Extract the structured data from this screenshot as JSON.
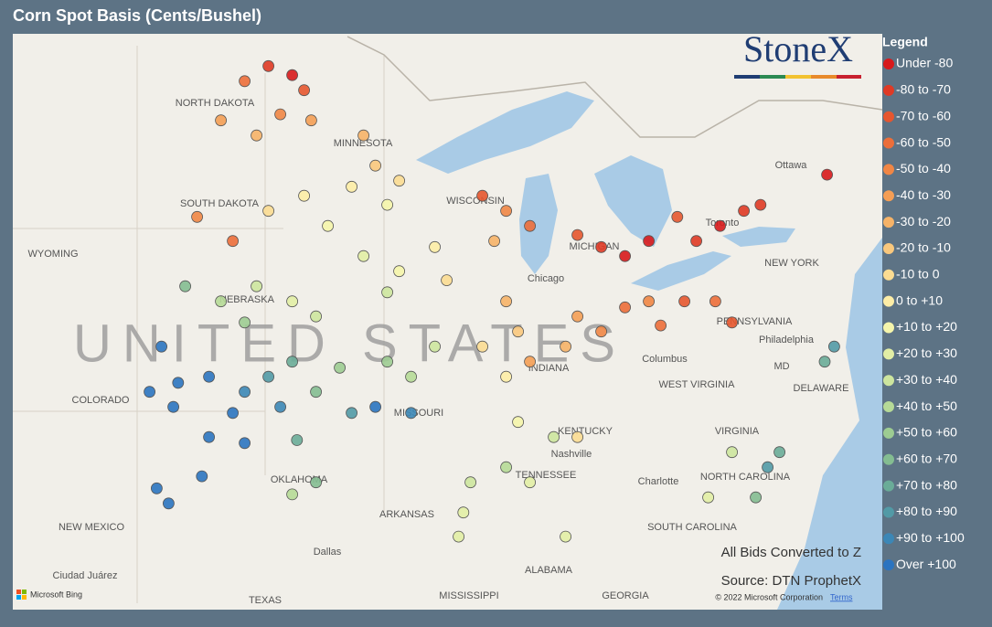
{
  "title": "Corn Spot Basis (Cents/Bushel)",
  "logo": "StoneX",
  "legend": {
    "title": "Legend",
    "items": [
      {
        "label": "Under -80",
        "color": "#d7191c"
      },
      {
        "label": "-80 to -70",
        "color": "#df3a25"
      },
      {
        "label": "-70 to -60",
        "color": "#e6562f"
      },
      {
        "label": "-60 to -50",
        "color": "#ec6e3a"
      },
      {
        "label": "-50 to -40",
        "color": "#f08645"
      },
      {
        "label": "-40 to -30",
        "color": "#f49e55"
      },
      {
        "label": "-30 to -20",
        "color": "#f6b368"
      },
      {
        "label": "-20 to -10",
        "color": "#f9c87d"
      },
      {
        "label": "-10 to 0",
        "color": "#fbdc92"
      },
      {
        "label": "0 to +10",
        "color": "#fdeda6"
      },
      {
        "label": "+10 to +20",
        "color": "#f5f5ab"
      },
      {
        "label": "+20 to +30",
        "color": "#e2eea5"
      },
      {
        "label": "+30 to +40",
        "color": "#cde59e"
      },
      {
        "label": "+40 to +50",
        "color": "#b6da97"
      },
      {
        "label": "+50 to +60",
        "color": "#9dcc92"
      },
      {
        "label": "+60 to +70",
        "color": "#84bd91"
      },
      {
        "label": "+70 to +80",
        "color": "#6aac98"
      },
      {
        "label": "+80 to +90",
        "color": "#529aa6"
      },
      {
        "label": "+90 to +100",
        "color": "#3c87b6"
      },
      {
        "label": "Over +100",
        "color": "#2b74c0"
      }
    ]
  },
  "points": {
    "lon": [
      -99,
      -98,
      -97.5,
      -100,
      -98.5,
      -97.2,
      -99.5,
      -101,
      -95,
      -94.5,
      -93.5,
      -95.5,
      -94,
      -99,
      -97.5,
      -96.5,
      -102,
      -100.5,
      -95,
      -93.5,
      -92,
      -91.5,
      -94,
      -90,
      -89,
      -88,
      -89.5,
      -89,
      -88.5,
      -90,
      -89,
      -88,
      -86,
      -85,
      -84,
      -83,
      -82.5,
      -81.5,
      -86.5,
      -85,
      -84,
      -83,
      -86,
      -81,
      -80,
      -79,
      -81.8,
      -78.3,
      -75.5,
      -79.5,
      -80.2,
      -101,
      -99.5,
      -98,
      -97,
      -100,
      -102.5,
      -101.5,
      -100,
      -99,
      -98,
      -97,
      -96,
      -100.5,
      -98.5,
      -95.5,
      -103.5,
      -102.8,
      -104,
      -103,
      -101.5,
      -100,
      -97.8,
      -97,
      -101.8,
      -98,
      -94,
      -93,
      -92,
      -94.5,
      -93,
      -88.5,
      -87,
      -86,
      -89,
      -88,
      -90.5,
      -90.8,
      -91,
      -78,
      -77.5,
      -78.5,
      -80.5,
      -79.5,
      -86.5,
      -75.6,
      -75.2,
      -103.7,
      -103.2
    ],
    "lat": [
      48.8,
      48.5,
      48,
      48.3,
      47.2,
      47,
      46.5,
      47,
      46.5,
      45.5,
      45,
      44.8,
      44.2,
      44,
      44.5,
      43.5,
      43.8,
      43,
      42.5,
      42,
      42.8,
      41.7,
      41.3,
      44.5,
      44,
      43.5,
      43,
      41,
      40,
      39.5,
      38.5,
      39,
      40.5,
      40,
      40.8,
      41,
      40.2,
      41,
      39.5,
      42.8,
      42.5,
      43,
      43.2,
      43,
      43.5,
      44,
      43.8,
      44.2,
      45.2,
      40.3,
      41,
      41,
      41.5,
      41,
      40.5,
      40.3,
      41.5,
      38.5,
      38,
      38.5,
      39,
      38,
      38.8,
      37.3,
      37.5,
      37.3,
      39.5,
      38.3,
      38,
      37.5,
      36.5,
      36.3,
      36.4,
      35,
      35.2,
      34.6,
      39,
      38.5,
      39.5,
      37.5,
      37.3,
      37,
      36.5,
      36.5,
      35.5,
      35,
      35,
      34,
      33.2,
      35.5,
      36,
      34.5,
      34.5,
      36,
      33.2,
      39,
      39.5,
      34.8,
      34.3
    ],
    "bin": [
      1,
      0,
      2,
      3,
      4,
      5,
      6,
      5,
      6,
      7,
      8,
      9,
      10,
      8,
      9,
      10,
      4,
      3,
      11,
      10,
      9,
      8,
      12,
      2,
      4,
      3,
      6,
      6,
      7,
      8,
      9,
      5,
      5,
      4,
      3,
      4,
      3,
      2,
      6,
      1,
      0,
      0,
      2,
      1,
      0,
      1,
      2,
      1,
      0,
      2,
      3,
      13,
      12,
      11,
      12,
      14,
      15,
      19,
      18,
      17,
      16,
      15,
      14,
      19,
      18,
      17,
      19,
      19,
      19,
      19,
      19,
      19,
      16,
      15,
      19,
      13,
      14,
      13,
      12,
      19,
      18,
      10,
      12,
      8,
      13,
      11,
      12,
      11,
      11,
      17,
      16,
      15,
      11,
      12,
      11,
      16,
      17,
      19,
      19
    ]
  },
  "map_labels": [
    "NORTH DAKOTA",
    "MINNESOTA",
    "SOUTH DAKOTA",
    "WISCONSIN",
    "WYOMING",
    "NEBRASKA",
    "Chicago",
    "MICHIGAN",
    "Toronto",
    "Ottawa",
    "NEW YORK",
    "PENNSYLVANIA",
    "Philadelphia",
    "Columbus",
    "INDIANA",
    "MD",
    "DELAWARE",
    "WEST VIRGINIA",
    "COLORADO",
    "MISSOURI",
    "KENTUCKY",
    "VIRGINIA",
    "Nashville",
    "TENNESSEE",
    "OKLAHOMA",
    "Charlotte",
    "NORTH CAROLINA",
    "ARKANSAS",
    "SOUTH CAROLINA",
    "NEW MEXICO",
    "Dallas",
    "Ciudad Juárez",
    "ALABAMA",
    "TEXAS",
    "MISSISSIPPI",
    "GEORGIA",
    "UNITED STATES"
  ],
  "annotations": [
    "All Bids Converted to Z",
    "Source: DTN ProphetX"
  ],
  "attribution": {
    "bing": "Microsoft Bing",
    "copyright": "© 2022 Microsoft Corporation",
    "terms": "Terms"
  }
}
